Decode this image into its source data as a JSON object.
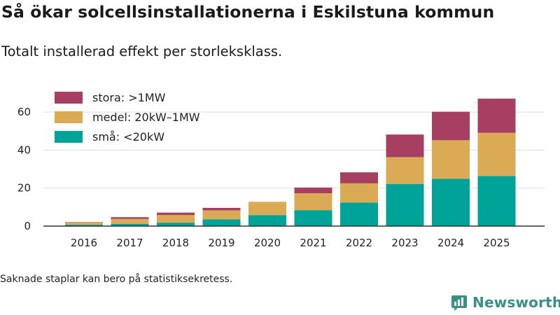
{
  "header": {
    "title": "Så ökar solcellsinstallationerna i Eskilstuna kommun",
    "subtitle": "Totalt installerad effekt per storleksklass."
  },
  "footer": {
    "note": "Saknade staplar kan bero på statistiksekretess.",
    "brand": "Newsworthy"
  },
  "chart_data": {
    "type": "bar",
    "stacked": true,
    "title": "Så ökar solcellsinstallationerna i Eskilstuna kommun",
    "subtitle": "Totalt installerad effekt per storleksklass.",
    "xlabel": "",
    "ylabel": "",
    "ylim": [
      0,
      70
    ],
    "yticks": [
      0,
      20,
      40,
      60
    ],
    "grid": true,
    "legend_position": "top-left",
    "categories": [
      "2016",
      "2017",
      "2018",
      "2019",
      "2020",
      "2021",
      "2022",
      "2023",
      "2024",
      "2025"
    ],
    "series": [
      {
        "name": "små: <20kW",
        "color": "#00a398",
        "values": [
          0.7,
          1.2,
          1.8,
          3.6,
          5.8,
          8.4,
          12.4,
          22.1,
          24.9,
          26.4
        ]
      },
      {
        "name": "medel: 20kW–1MW",
        "color": "#dbaa55",
        "values": [
          1.4,
          2.6,
          4.0,
          4.7,
          7.0,
          8.9,
          10.1,
          14.2,
          20.3,
          22.7
        ]
      },
      {
        "name": "stora: >1MW",
        "color": "#a73f63",
        "values": [
          0.1,
          0.9,
          1.3,
          1.3,
          0,
          3.0,
          5.8,
          11.9,
          15.0,
          18.0
        ]
      }
    ]
  }
}
